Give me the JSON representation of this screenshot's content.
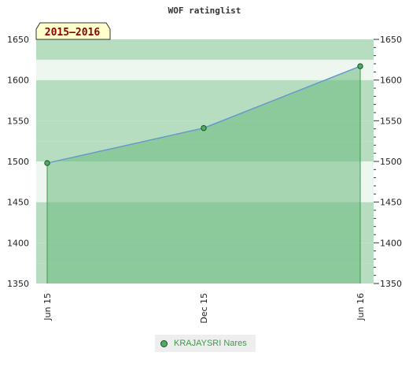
{
  "chart_data": {
    "type": "area",
    "title": "WOF ratinglist",
    "season_label": "2015–2016",
    "x_ticks": [
      "Jun 15",
      "Dec 15",
      "Jun 16"
    ],
    "ylim": [
      1350,
      1650
    ],
    "y_ticks": [
      1350,
      1400,
      1450,
      1500,
      1550,
      1600,
      1650
    ],
    "grid": true,
    "legend_position": "bottom-center",
    "series": [
      {
        "name": "KRAJAYSRI Nares",
        "x": [
          "Jun 15",
          "Dec 15",
          "Jun 16"
        ],
        "values": [
          1498,
          1541,
          1617
        ]
      }
    ],
    "colors": {
      "line": "#6699cc",
      "fill": "#6aba7d",
      "marker": "#4caf60",
      "legend_text": "#3c9a4a",
      "band_light": "#eef7ef",
      "band_mid": "#b6ddc0",
      "band_dark": "#7cc391"
    }
  }
}
